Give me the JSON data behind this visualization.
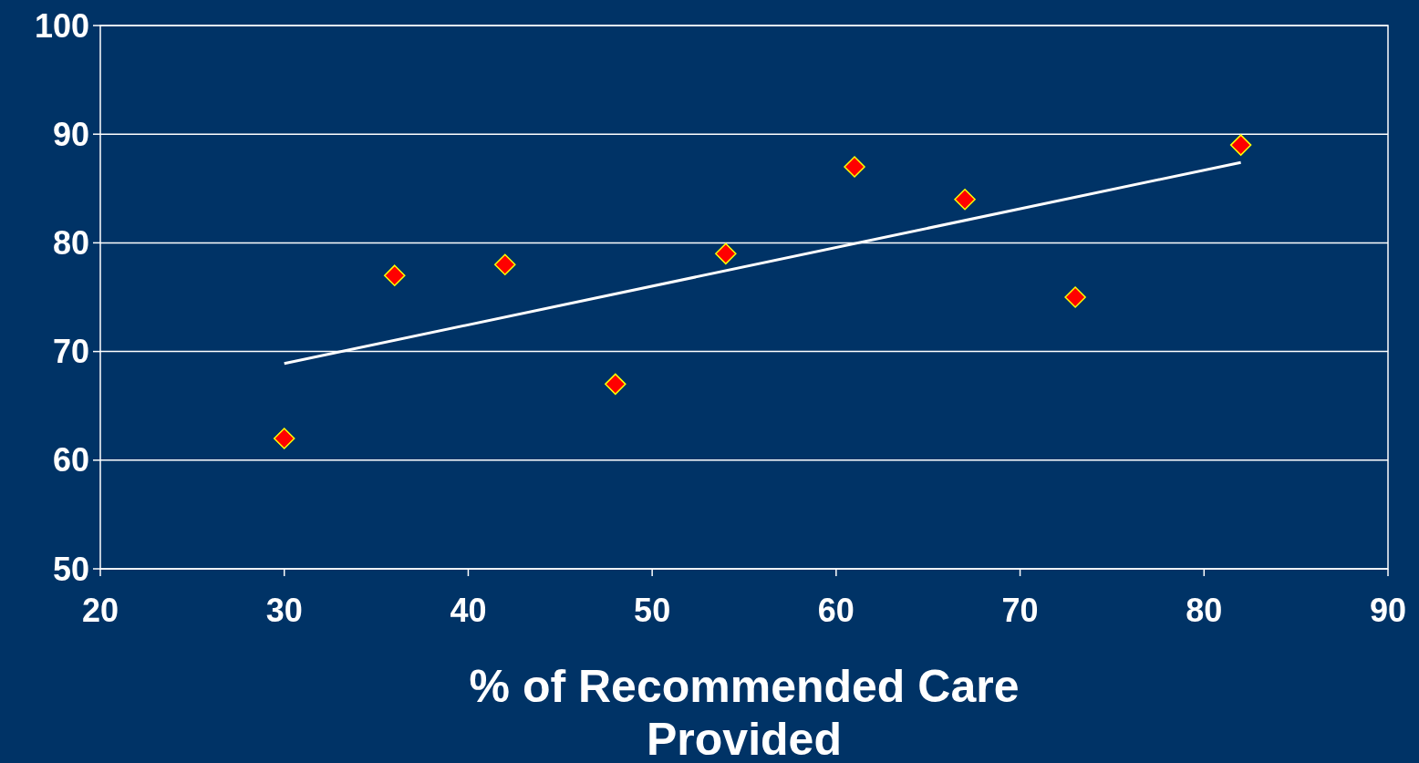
{
  "chart_data": {
    "type": "scatter",
    "xlabel": "% of Recommended Care Provided",
    "xlim": [
      20,
      90
    ],
    "xticks": [
      20,
      30,
      40,
      50,
      60,
      70,
      80,
      90
    ],
    "ylim": [
      50,
      100
    ],
    "yticks": [
      50,
      60,
      70,
      80,
      90,
      100
    ],
    "grid": "y",
    "marker": "diamond",
    "series": [
      {
        "color": "#ff0000",
        "x": [
          30,
          36,
          42,
          48,
          54,
          61,
          67,
          73,
          82
        ],
        "values": [
          62,
          77,
          78,
          67,
          79,
          87,
          84,
          75,
          89
        ]
      },
      {
        "type": "line",
        "color": "#ffffff",
        "marker": "none",
        "x": [
          30,
          82
        ],
        "values": [
          68.9,
          87.4
        ]
      }
    ]
  }
}
